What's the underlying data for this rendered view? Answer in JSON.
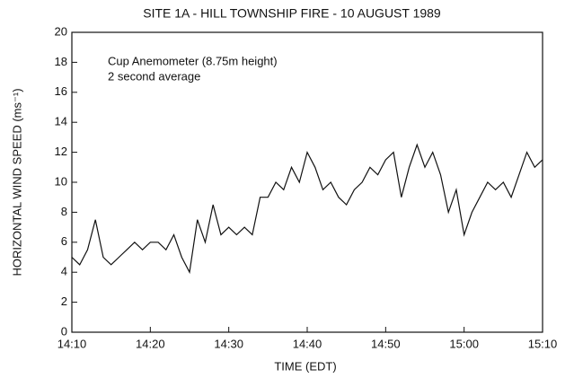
{
  "chart_data": {
    "type": "line",
    "title": "SITE 1A - HILL TOWNSHIP FIRE - 10 AUGUST 1989",
    "xlabel": "TIME (EDT)",
    "ylabel": "HORIZONTAL WIND SPEED (ms⁻¹)",
    "annotations": [
      "Cup Anemometer (8.75m height)",
      "2 second average"
    ],
    "x": [
      "14:10",
      "14:11",
      "14:12",
      "14:13",
      "14:14",
      "14:15",
      "14:16",
      "14:17",
      "14:18",
      "14:19",
      "14:20",
      "14:21",
      "14:22",
      "14:23",
      "14:24",
      "14:25",
      "14:26",
      "14:27",
      "14:28",
      "14:29",
      "14:30",
      "14:31",
      "14:32",
      "14:33",
      "14:34",
      "14:35",
      "14:36",
      "14:37",
      "14:38",
      "14:39",
      "14:40",
      "14:41",
      "14:42",
      "14:43",
      "14:44",
      "14:45",
      "14:46",
      "14:47",
      "14:48",
      "14:49",
      "14:50",
      "14:51",
      "14:52",
      "14:53",
      "14:54",
      "14:55",
      "14:56",
      "14:57",
      "14:58",
      "14:59",
      "15:00",
      "15:01",
      "15:02",
      "15:03",
      "15:04",
      "15:05",
      "15:06",
      "15:07",
      "15:08",
      "15:09",
      "15:10"
    ],
    "values": [
      5,
      4.5,
      5.5,
      7.5,
      5,
      4.5,
      5,
      5.5,
      6,
      5.5,
      6,
      6,
      5.5,
      6.5,
      5,
      4,
      7.5,
      6,
      8.5,
      6.5,
      7,
      6.5,
      7,
      6.5,
      9,
      9,
      10,
      9.5,
      11,
      10,
      12,
      11,
      9.5,
      10,
      9,
      8.5,
      9.5,
      10,
      11,
      10.5,
      11.5,
      12,
      9,
      11,
      12.5,
      11,
      12,
      10.5,
      8,
      9.5,
      6.5,
      8,
      9,
      10,
      9.5,
      10,
      9,
      10.5,
      12,
      11,
      11.5
    ],
    "color": "#111111",
    "xlim": [
      "14:10",
      "15:10"
    ],
    "xticks": [
      "14:10",
      "14:20",
      "14:30",
      "14:40",
      "14:50",
      "15:00",
      "15:10"
    ],
    "ylim": [
      0,
      20
    ],
    "yticks": [
      0,
      2,
      4,
      6,
      8,
      10,
      12,
      14,
      16,
      18,
      20
    ]
  }
}
